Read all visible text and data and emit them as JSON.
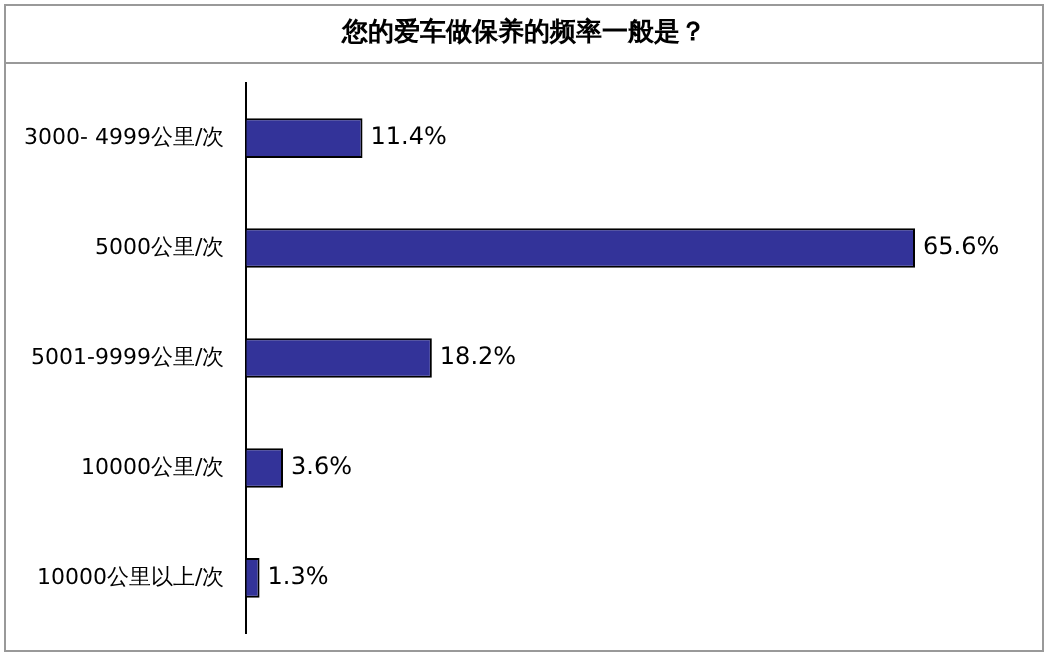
{
  "chart_data": {
    "type": "bar",
    "orientation": "horizontal",
    "title": "您的爱车做保养的频率一般是？",
    "categories": [
      "3000- 4999公里/次",
      "5000公里/次",
      "5001-9999公里/次",
      "10000公里/次",
      "10000公里以上/次"
    ],
    "values": [
      11.4,
      65.6,
      18.2,
      3.6,
      1.3
    ],
    "value_labels": [
      "11.4%",
      "65.6%",
      "18.2%",
      "3.6%",
      "1.3%"
    ],
    "color": "#333399",
    "legend": false,
    "tick_labels": "y"
  }
}
